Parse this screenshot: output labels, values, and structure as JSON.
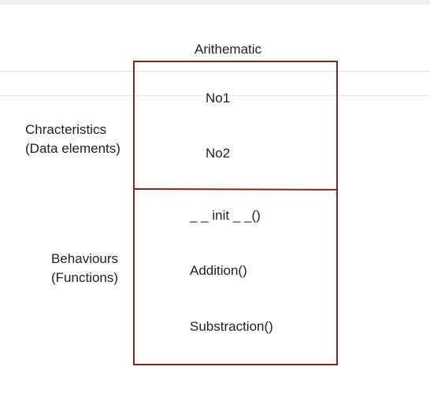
{
  "diagram": {
    "class_name": "Arithematic",
    "attributes_caption": [
      "Chracteristics",
      "(Data elements)"
    ],
    "behaviours_caption": [
      "Behaviours",
      "(Functions)"
    ],
    "attributes": [
      "No1",
      "No2"
    ],
    "methods": [
      "_ _ init _ _()",
      "Addition()",
      "Substraction()"
    ],
    "box_color": "#7a2a22"
  }
}
